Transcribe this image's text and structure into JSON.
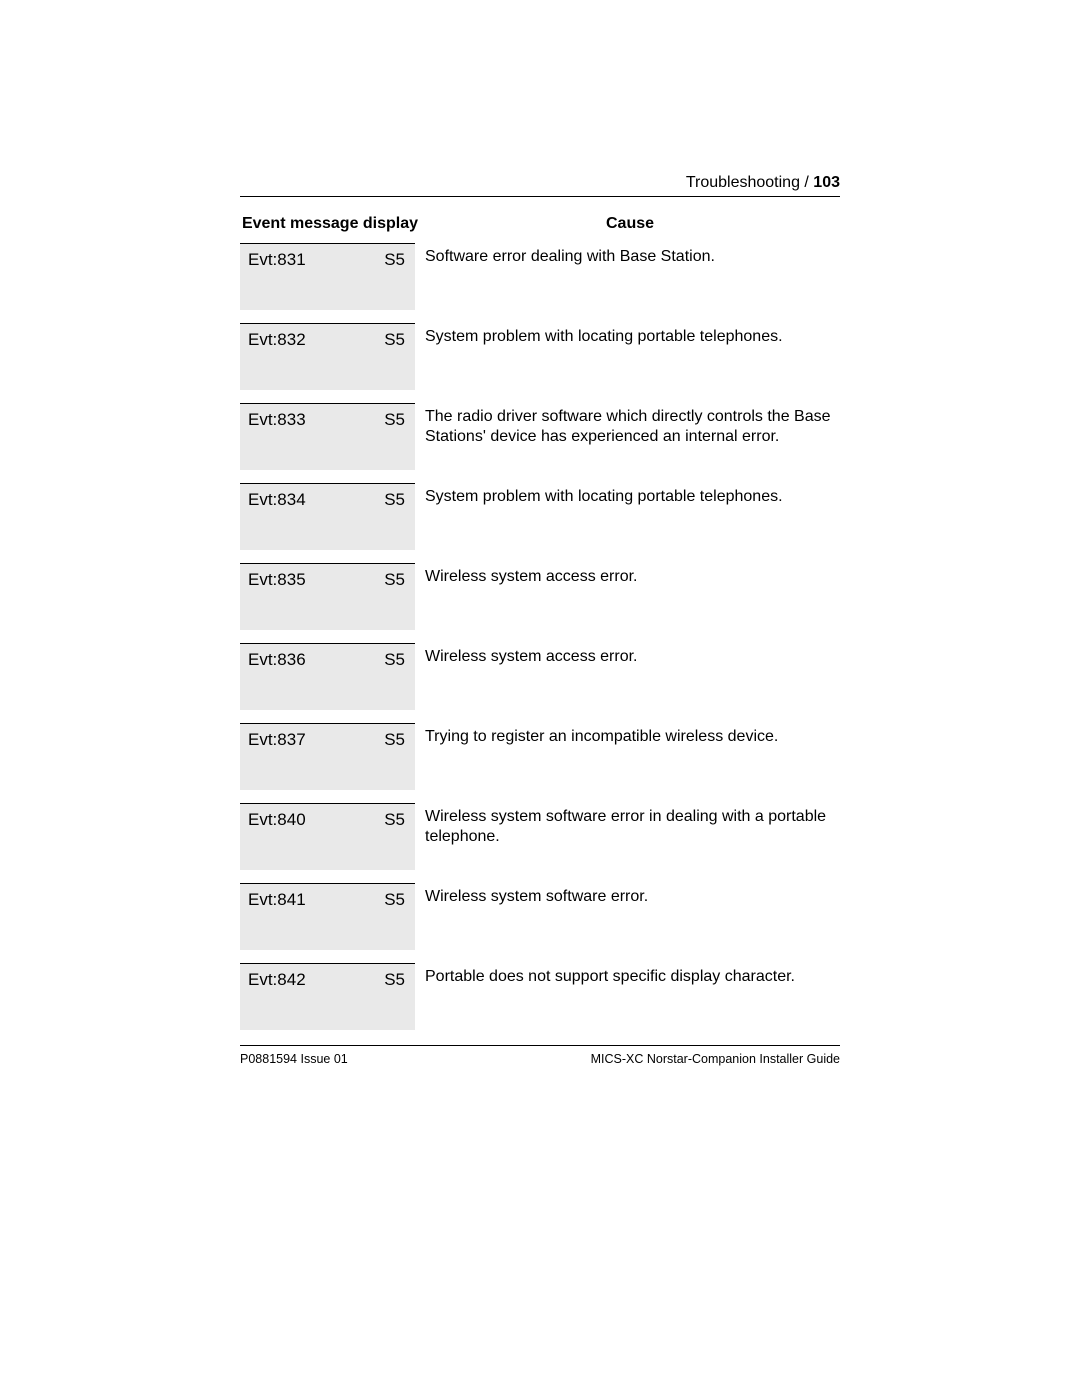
{
  "header": {
    "section": "Troubleshooting / ",
    "page_number": "103"
  },
  "table": {
    "head_event": "Event message display",
    "head_cause": "Cause",
    "rows": [
      {
        "evt": "Evt:831",
        "s": "S5",
        "cause": "Software error dealing with Base Station."
      },
      {
        "evt": "Evt:832",
        "s": "S5",
        "cause": "System problem with locating portable telephones."
      },
      {
        "evt": "Evt:833",
        "s": "S5",
        "cause": "The radio driver software which directly controls the Base Stations' device has experienced an internal error."
      },
      {
        "evt": "Evt:834",
        "s": "S5",
        "cause": "System problem with locating portable telephones."
      },
      {
        "evt": "Evt:835",
        "s": "S5",
        "cause": "Wireless system access error."
      },
      {
        "evt": "Evt:836",
        "s": "S5",
        "cause": "Wireless system access error."
      },
      {
        "evt": "Evt:837",
        "s": "S5",
        "cause": "Trying to register an incompatible wireless device."
      },
      {
        "evt": "Evt:840",
        "s": "S5",
        "cause": "Wireless system software error in dealing with a portable telephone."
      },
      {
        "evt": "Evt:841",
        "s": "S5",
        "cause": "Wireless system software error."
      },
      {
        "evt": "Evt:842",
        "s": "S5",
        "cause": "Portable does not support specific display character."
      }
    ]
  },
  "footer": {
    "left": "P0881594 Issue 01",
    "right": "MICS-XC Norstar-Companion Installer Guide"
  },
  "colors": {
    "cell_bg": "#e9e9e9",
    "rule": "#000000",
    "text": "#000000",
    "page_bg": "#ffffff"
  }
}
